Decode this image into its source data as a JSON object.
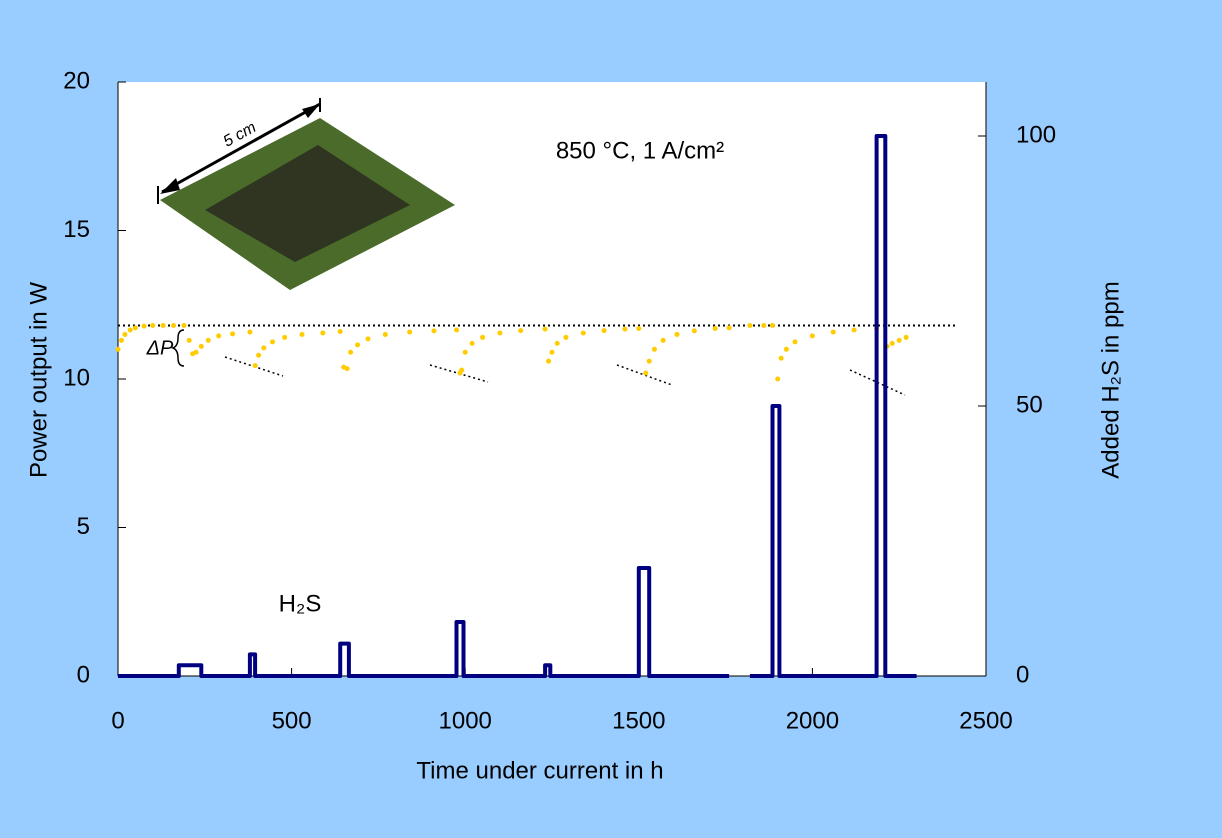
{
  "chart_data": {
    "type": "line",
    "annotations": {
      "condition": "850 °C, 1 A/cm²",
      "delta": "ΔP",
      "size": "5 cm"
    },
    "xlabel": "Time under current in h",
    "ylabel": "Power output in W",
    "y2label": "Added H₂S in ppm",
    "xlim": [
      0,
      2500
    ],
    "xticks": [
      0,
      500,
      1000,
      1500,
      2000,
      2500
    ],
    "ylim": [
      0,
      20
    ],
    "yticks": [
      0,
      5,
      10,
      15,
      20
    ],
    "y2lim": [
      0,
      110
    ],
    "y2ticks": [
      0,
      50,
      100
    ],
    "reference_line": 11.8,
    "series": [
      {
        "color": "#ffcc00",
        "marker": "dot",
        "x": [
          0,
          10,
          20,
          35,
          50,
          75,
          100,
          130,
          160,
          190,
          205,
          215,
          225,
          240,
          260,
          290,
          330,
          380,
          395,
          405,
          420,
          445,
          480,
          530,
          590,
          640,
          650,
          660,
          670,
          690,
          720,
          770,
          840,
          910,
          975,
          985,
          990,
          1000,
          1020,
          1050,
          1100,
          1160,
          1230,
          1240,
          1250,
          1265,
          1290,
          1340,
          1400,
          1460,
          1500,
          1520,
          1530,
          1545,
          1570,
          1610,
          1660,
          1720,
          1760,
          1820,
          1860,
          1885,
          1900,
          1910,
          1925,
          1950,
          2000,
          2060,
          2120,
          2185,
          2215,
          2230,
          2250,
          2270
        ],
        "values": [
          11.0,
          11.3,
          11.5,
          11.65,
          11.72,
          11.78,
          11.8,
          11.8,
          11.8,
          11.8,
          11.3,
          10.85,
          10.9,
          11.1,
          11.3,
          11.45,
          11.52,
          11.58,
          10.45,
          10.8,
          11.05,
          11.25,
          11.4,
          11.5,
          11.55,
          11.6,
          10.4,
          10.35,
          10.9,
          11.15,
          11.35,
          11.5,
          11.58,
          11.62,
          11.65,
          10.2,
          10.3,
          10.9,
          11.2,
          11.4,
          11.55,
          11.63,
          11.68,
          10.6,
          10.9,
          11.2,
          11.4,
          11.55,
          11.63,
          11.68,
          11.7,
          10.2,
          10.6,
          11.0,
          11.3,
          11.5,
          11.62,
          11.7,
          11.72,
          11.8,
          11.8,
          11.8,
          10.0,
          10.7,
          11.0,
          11.25,
          11.45,
          11.58,
          11.65,
          11.7,
          11.1,
          11.2,
          11.3,
          11.4
        ]
      },
      {
        "name": "H₂S",
        "color": "#000080",
        "axis": "y2",
        "marker": "step",
        "x": [
          0,
          175,
          175,
          240,
          240,
          380,
          380,
          395,
          395,
          640,
          640,
          665,
          665,
          975,
          975,
          995,
          995,
          1230,
          1230,
          1245,
          1245,
          1500,
          1500,
          1530,
          1530,
          1760,
          1790,
          1820,
          1885,
          1885,
          1905,
          1905,
          2185,
          2185,
          2210,
          2210,
          2300
        ],
        "values": [
          0,
          0,
          2,
          2,
          0,
          0,
          4,
          4,
          0,
          0,
          6,
          6,
          0,
          0,
          10,
          10,
          0,
          0,
          2,
          2,
          0,
          0,
          20,
          20,
          0,
          0,
          null,
          0,
          0,
          50,
          50,
          0,
          0,
          100,
          100,
          0,
          0
        ]
      }
    ]
  }
}
